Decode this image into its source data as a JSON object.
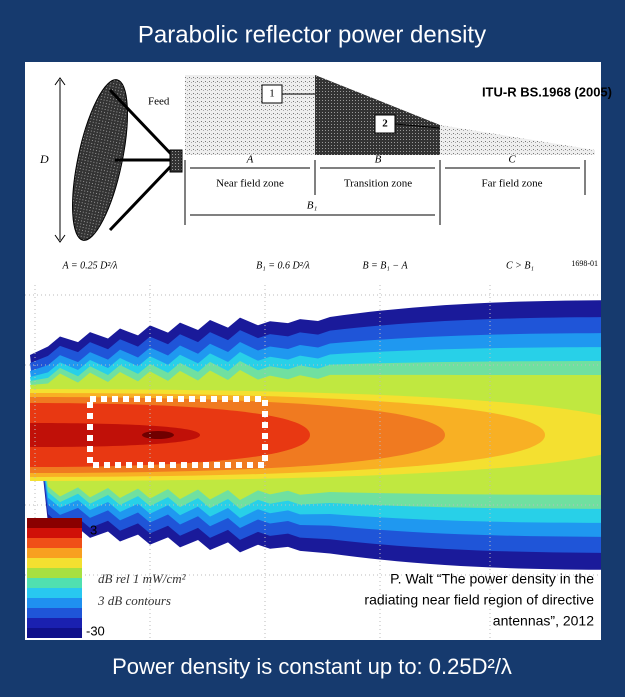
{
  "header": {
    "title": "Parabolic reflector power density"
  },
  "diagram": {
    "source": "ITU-R BS.1968 (2005)",
    "feed": "Feed",
    "d_label": "D",
    "markers": [
      "1",
      "2"
    ],
    "zones": [
      {
        "letter": "A",
        "name": "Near field zone"
      },
      {
        "letter": "B",
        "name": "Transition zone"
      },
      {
        "letter": "C",
        "name": "Far field zone"
      }
    ],
    "b1": "B₁",
    "formulas": [
      "A = 0.25 D²/λ",
      "B₁ = 0.6 D²/λ",
      "B = B₁ − A",
      "C > B₁"
    ],
    "figure_id": "1698-01"
  },
  "plot": {
    "legend": {
      "max": "3",
      "min": "-30",
      "unit": "dB rel 1 mW/cm²",
      "contours": "3 dB contours"
    },
    "citation": [
      "P. Walt “The power density in the",
      "radiating near field region of directive",
      "antennas”, 2012"
    ]
  },
  "footer": {
    "caption": "Power density is constant up to: 0.25D²/λ"
  }
}
